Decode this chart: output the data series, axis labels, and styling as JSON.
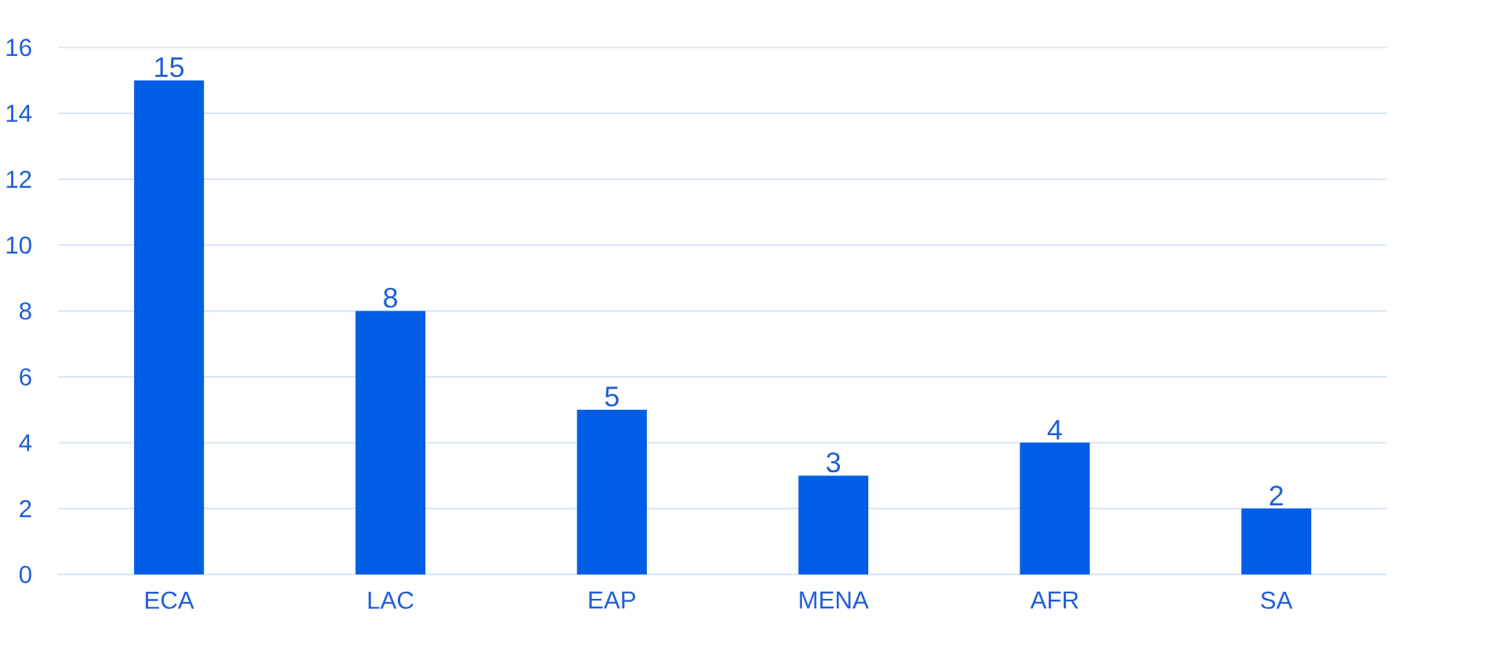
{
  "chart_data": {
    "type": "bar",
    "categories": [
      "ECA",
      "LAC",
      "EAP",
      "MENA",
      "AFR",
      "SA"
    ],
    "values": [
      15,
      8,
      5,
      3,
      4,
      2
    ],
    "color": "#005ee6",
    "ylim": [
      0,
      16
    ],
    "yticks": [
      0,
      2,
      4,
      6,
      8,
      10,
      12,
      14,
      16
    ],
    "grid": "y",
    "data_labels": true
  }
}
